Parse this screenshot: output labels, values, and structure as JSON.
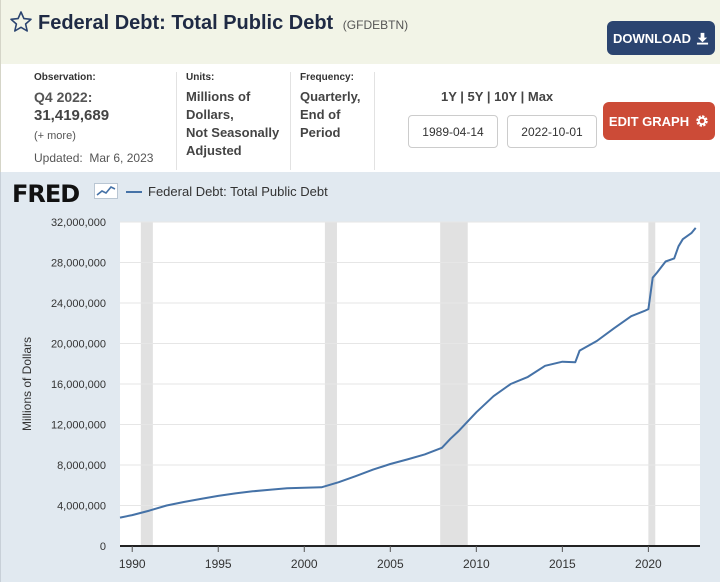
{
  "header": {
    "title": "Federal Debt: Total Public Debt",
    "series_id": "(GFDEBTN)",
    "download_label": "DOWNLOAD"
  },
  "observation": {
    "label": "Observation:",
    "date": "Q4 2022:",
    "value": "31,419,689",
    "more": "(+ more)",
    "updated_label": "Updated:",
    "updated": "Mar 6, 2023"
  },
  "units": {
    "label": "Units:",
    "lines": [
      "Millions of",
      "Dollars,",
      "Not Seasonally",
      "Adjusted"
    ]
  },
  "frequency": {
    "label": "Frequency:",
    "lines": [
      "Quarterly,",
      "End of",
      "Period"
    ]
  },
  "range_buttons": [
    "1Y",
    "5Y",
    "10Y",
    "Max"
  ],
  "start_date": "1989-04-14",
  "end_date": "2022-10-01",
  "edit_graph_label": "EDIT GRAPH",
  "logo_text": "FRED",
  "colors": {
    "line": "#4572a7",
    "recession": "#e1e1e1",
    "download_bg": "#2b4470",
    "edit_bg": "#cc4b37"
  },
  "chart_data": {
    "type": "line",
    "ylabel": "Millions of Dollars",
    "ylim": [
      0,
      32000000
    ],
    "xlim": [
      1989.29,
      2023.0
    ],
    "y_ticks": [
      0,
      4000000,
      8000000,
      12000000,
      16000000,
      20000000,
      24000000,
      28000000,
      32000000
    ],
    "y_tick_labels": [
      "0",
      "4,000,000",
      "8,000,000",
      "12,000,000",
      "16,000,000",
      "20,000,000",
      "24,000,000",
      "28,000,000",
      "32,000,000"
    ],
    "x_ticks": [
      1990,
      1995,
      2000,
      2005,
      2010,
      2015,
      2020
    ],
    "x_tick_labels": [
      "1990",
      "1995",
      "2000",
      "2005",
      "2010",
      "2015",
      "2020"
    ],
    "recessions": [
      [
        1990.5,
        1991.2
      ],
      [
        2001.2,
        2001.9
      ],
      [
        2007.9,
        2009.5
      ],
      [
        2020.0,
        2020.4
      ]
    ],
    "series": [
      {
        "name": "Federal Debt: Total Public Debt",
        "x": [
          1989.25,
          1990.0,
          1991.0,
          1992.0,
          1993.0,
          1994.0,
          1995.0,
          1996.0,
          1997.0,
          1998.0,
          1999.0,
          2000.0,
          2001.0,
          2002.0,
          2003.0,
          2004.0,
          2005.0,
          2006.0,
          2007.0,
          2008.0,
          2008.5,
          2009.0,
          2010.0,
          2011.0,
          2012.0,
          2013.0,
          2014.0,
          2015.0,
          2015.75,
          2016.0,
          2017.0,
          2018.0,
          2019.0,
          2019.75,
          2020.0,
          2020.25,
          2020.5,
          2021.0,
          2021.5,
          2021.75,
          2022.0,
          2022.5,
          2022.75
        ],
        "y": [
          2800000,
          3050000,
          3500000,
          4000000,
          4350000,
          4650000,
          4950000,
          5200000,
          5400000,
          5550000,
          5700000,
          5750000,
          5800000,
          6300000,
          6900000,
          7550000,
          8100000,
          8550000,
          9050000,
          9700000,
          10600000,
          11400000,
          13200000,
          14800000,
          16000000,
          16700000,
          17800000,
          18200000,
          18150000,
          19300000,
          20250000,
          21500000,
          22700000,
          23200000,
          23400000,
          26500000,
          27000000,
          28100000,
          28400000,
          29600000,
          30300000,
          30900000,
          31419689
        ]
      }
    ]
  }
}
